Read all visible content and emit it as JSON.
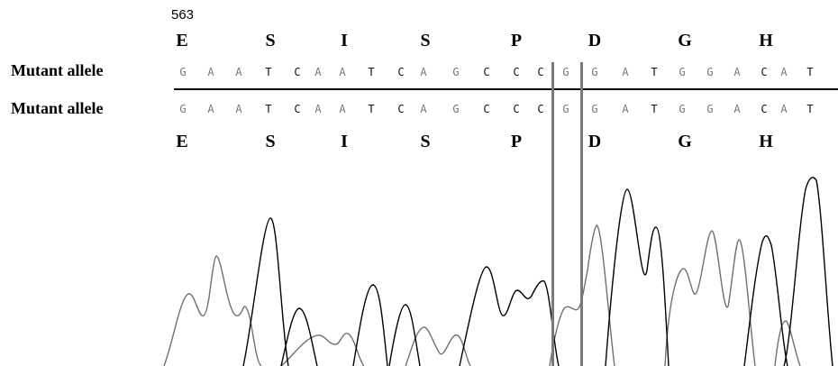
{
  "position_label": "563",
  "rows": [
    {
      "label": "Mutant allele"
    },
    {
      "label": "Mutant allele"
    }
  ],
  "amino_acids_top": [
    "E",
    "S",
    "I",
    "S",
    "P",
    "D",
    "G",
    "H"
  ],
  "amino_acids_bottom": [
    "E",
    "S",
    "I",
    "S",
    "P",
    "D",
    "G",
    "H"
  ],
  "bases_top": [
    "G",
    "A",
    "A",
    "T",
    "C",
    "A",
    "A",
    "T",
    "C",
    "A",
    "G",
    "C",
    "C",
    "C",
    "G",
    "G",
    "A",
    "T",
    "G",
    "G",
    "A",
    "C",
    "A",
    "T"
  ],
  "bases_bottom": [
    "G",
    "A",
    "A",
    "T",
    "C",
    "A",
    "A",
    "T",
    "C",
    "A",
    "G",
    "C",
    "C",
    "C",
    "G",
    "G",
    "A",
    "T",
    "G",
    "G",
    "A",
    "C",
    "A",
    "T"
  ],
  "colors": {
    "dark_trace": "#000000",
    "light_trace": "#707070",
    "marker": "#7a7a7a"
  }
}
